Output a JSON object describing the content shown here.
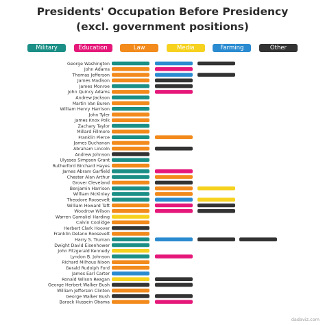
{
  "chart_data": {
    "type": "bar",
    "title": "Presidents' Occupation Before Presidency",
    "subtitle": "(excl. government positions)",
    "legend_placement": "top",
    "occupations": [
      {
        "key": "military",
        "label": "Military",
        "color": "#1b8f86"
      },
      {
        "key": "education",
        "label": "Education",
        "color": "#e5187a"
      },
      {
        "key": "law",
        "label": "Law",
        "color": "#f28a1c"
      },
      {
        "key": "media",
        "label": "Media",
        "color": "#f6d21f"
      },
      {
        "key": "farming",
        "label": "Farming",
        "color": "#2a8bd0"
      },
      {
        "key": "other",
        "label": "Other",
        "color": "#333333"
      }
    ],
    "presidents": [
      {
        "name": "George Washington",
        "occupations": [
          "military",
          "farming",
          "other"
        ]
      },
      {
        "name": "John Adams",
        "occupations": [
          "law",
          "education"
        ]
      },
      {
        "name": "Thomas Jefferson",
        "occupations": [
          "law",
          "farming",
          "other"
        ]
      },
      {
        "name": "James Madison",
        "occupations": [
          "law",
          "other"
        ]
      },
      {
        "name": "James Monroe",
        "occupations": [
          "military",
          "other"
        ]
      },
      {
        "name": "John Quincy Adams",
        "occupations": [
          "law",
          "education"
        ]
      },
      {
        "name": "Andrew Jackson",
        "occupations": [
          "military"
        ]
      },
      {
        "name": "Martin Van Buren",
        "occupations": [
          "law"
        ]
      },
      {
        "name": "William Henry Harrison",
        "occupations": [
          "military"
        ]
      },
      {
        "name": "John Tyler",
        "occupations": [
          "law"
        ]
      },
      {
        "name": "James Knox Polk",
        "occupations": [
          "law"
        ]
      },
      {
        "name": "Zachary Taylor",
        "occupations": [
          "military"
        ]
      },
      {
        "name": "Millard Fillmore",
        "occupations": [
          "law"
        ]
      },
      {
        "name": "Franklin Pierce",
        "occupations": [
          "military",
          "law"
        ]
      },
      {
        "name": "James Buchanan",
        "occupations": [
          "law"
        ]
      },
      {
        "name": "Abraham Lincoln",
        "occupations": [
          "law",
          "other"
        ]
      },
      {
        "name": "Andrew Johnson",
        "occupations": [
          "other"
        ]
      },
      {
        "name": "Ulysses Simpson Grant",
        "occupations": [
          "military"
        ]
      },
      {
        "name": "Rutherford Birchard Hayes",
        "occupations": [
          "law"
        ]
      },
      {
        "name": "James Abram Garfield",
        "occupations": [
          "military",
          "education"
        ]
      },
      {
        "name": "Chester Alan Arthur",
        "occupations": [
          "military",
          "law"
        ]
      },
      {
        "name": "Grover Cleveland",
        "occupations": [
          "law",
          "other"
        ]
      },
      {
        "name": "Benjamin Harrison",
        "occupations": [
          "military",
          "law",
          "media"
        ]
      },
      {
        "name": "William McKinley",
        "occupations": [
          "military",
          "law"
        ]
      },
      {
        "name": "Theodore Roosevelt",
        "occupations": [
          "military",
          "farming",
          "media"
        ]
      },
      {
        "name": "William Howard Taft",
        "occupations": [
          "law",
          "education",
          "other"
        ]
      },
      {
        "name": "Woodrow Wilson",
        "occupations": [
          "law",
          "education",
          "other"
        ]
      },
      {
        "name": "Warren Gamaliel Harding",
        "occupations": [
          "media"
        ]
      },
      {
        "name": "Calvin Coolidge",
        "occupations": [
          "law"
        ]
      },
      {
        "name": "Herbert Clark Hoover",
        "occupations": [
          "other"
        ]
      },
      {
        "name": "Franklin Delano Roosevelt",
        "occupations": [
          "law"
        ]
      },
      {
        "name": "Harry S. Truman",
        "occupations": [
          "military",
          "farming",
          "other",
          "other"
        ]
      },
      {
        "name": "Dwight David Eisenhower",
        "occupations": [
          "military"
        ]
      },
      {
        "name": "John Fitzgerald Kennedy",
        "occupations": [
          "media"
        ]
      },
      {
        "name": "Lyndon B. Johnson",
        "occupations": [
          "military",
          "education"
        ]
      },
      {
        "name": "Richard Milhous Nixon",
        "occupations": [
          "law"
        ]
      },
      {
        "name": "Gerald Rudolph Ford",
        "occupations": [
          "law"
        ]
      },
      {
        "name": "James Earl Carter",
        "occupations": [
          "farming"
        ]
      },
      {
        "name": "Ronald Wilson Reagan",
        "occupations": [
          "media",
          "other"
        ]
      },
      {
        "name": "George Herbert Walker Bush",
        "occupations": [
          "other",
          "other"
        ]
      },
      {
        "name": "William Jefferson Clinton",
        "occupations": [
          "law"
        ]
      },
      {
        "name": "George Walker Bush",
        "occupations": [
          "other",
          "other"
        ]
      },
      {
        "name": "Barack Hussein Obama",
        "occupations": [
          "law",
          "education"
        ]
      }
    ]
  },
  "credit": "dadaviz.com"
}
